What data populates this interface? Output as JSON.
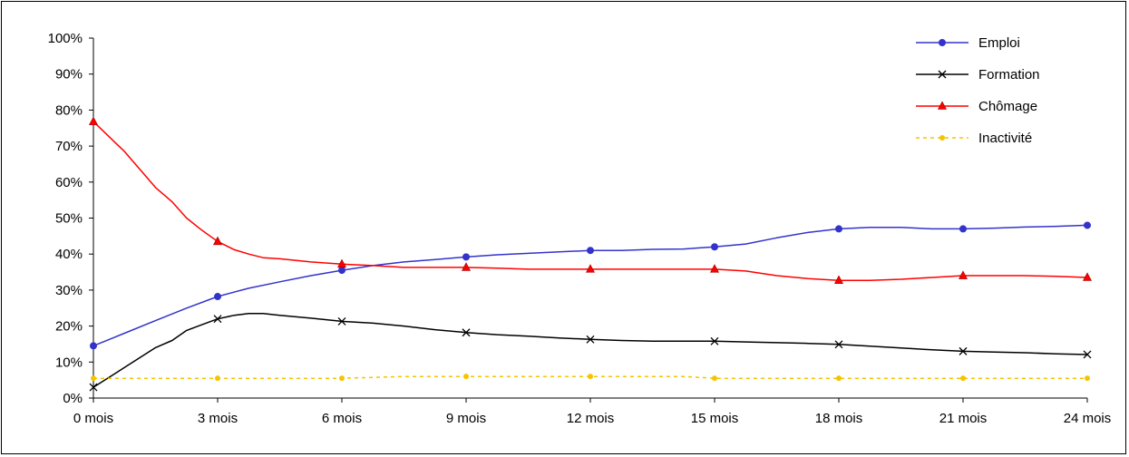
{
  "chart_data": {
    "type": "line",
    "title": "",
    "xlabel": "",
    "ylabel": "",
    "categories": [
      "0 mois",
      "3 mois",
      "6 mois",
      "9 mois",
      "12 mois",
      "15 mois",
      "18 mois",
      "21 mois",
      "24 mois"
    ],
    "months": [
      0,
      3,
      6,
      9,
      12,
      15,
      18,
      21,
      24
    ],
    "ylim": [
      0,
      100
    ],
    "yticks": [
      "0%",
      "10%",
      "20%",
      "30%",
      "40%",
      "50%",
      "60%",
      "70%",
      "80%",
      "90%",
      "100%"
    ],
    "grid": false,
    "legend": "top-right",
    "series": [
      {
        "name": "Emploi",
        "color": "#3333cc",
        "marker": "circle",
        "dash": "",
        "values": [
          14.5,
          28.2,
          35.5,
          39.2,
          41.0,
          42.0,
          47.0,
          47.0,
          48.0
        ],
        "path": [
          [
            0,
            14.5
          ],
          [
            0.75,
            18
          ],
          [
            1.5,
            21.5
          ],
          [
            2.25,
            25
          ],
          [
            3,
            28.2
          ],
          [
            3.75,
            30.5
          ],
          [
            4.5,
            32.3
          ],
          [
            5.25,
            34
          ],
          [
            6,
            35.5
          ],
          [
            6.75,
            36.8
          ],
          [
            7.5,
            37.8
          ],
          [
            8.25,
            38.5
          ],
          [
            9,
            39.2
          ],
          [
            9.75,
            39.8
          ],
          [
            10.5,
            40.2
          ],
          [
            11.25,
            40.6
          ],
          [
            12,
            41.0
          ],
          [
            12.75,
            41.0
          ],
          [
            13.5,
            41.3
          ],
          [
            14.25,
            41.4
          ],
          [
            15,
            42.0
          ],
          [
            15.75,
            42.8
          ],
          [
            16.5,
            44.5
          ],
          [
            17.25,
            46
          ],
          [
            18,
            47.0
          ],
          [
            18.75,
            47.4
          ],
          [
            19.5,
            47.4
          ],
          [
            20.25,
            47.0
          ],
          [
            21,
            47.0
          ],
          [
            21.75,
            47.2
          ],
          [
            22.5,
            47.5
          ],
          [
            23.25,
            47.7
          ],
          [
            24,
            48.0
          ]
        ]
      },
      {
        "name": "Formation",
        "color": "#000000",
        "marker": "x",
        "dash": "",
        "values": [
          3.0,
          22.0,
          21.3,
          18.2,
          16.3,
          15.8,
          14.9,
          13.0,
          12.1
        ],
        "path": [
          [
            0,
            3.0
          ],
          [
            0.75,
            8.5
          ],
          [
            1.5,
            14
          ],
          [
            1.9,
            16
          ],
          [
            2.25,
            18.8
          ],
          [
            2.6,
            20.3
          ],
          [
            3,
            22.0
          ],
          [
            3.4,
            23.0
          ],
          [
            3.75,
            23.5
          ],
          [
            4.1,
            23.5
          ],
          [
            4.5,
            23.0
          ],
          [
            5.25,
            22.2
          ],
          [
            6,
            21.3
          ],
          [
            6.75,
            20.8
          ],
          [
            7.5,
            20
          ],
          [
            8.25,
            19
          ],
          [
            9,
            18.2
          ],
          [
            9.75,
            17.6
          ],
          [
            10.5,
            17.2
          ],
          [
            11.25,
            16.7
          ],
          [
            12,
            16.3
          ],
          [
            12.75,
            16.0
          ],
          [
            13.5,
            15.8
          ],
          [
            14.25,
            15.8
          ],
          [
            15,
            15.8
          ],
          [
            15.75,
            15.6
          ],
          [
            16.5,
            15.4
          ],
          [
            17.25,
            15.2
          ],
          [
            18,
            14.9
          ],
          [
            18.75,
            14.4
          ],
          [
            19.5,
            13.9
          ],
          [
            20.25,
            13.4
          ],
          [
            21,
            13.0
          ],
          [
            21.75,
            12.8
          ],
          [
            22.5,
            12.6
          ],
          [
            23.25,
            12.3
          ],
          [
            24,
            12.1
          ]
        ]
      },
      {
        "name": "Chômage",
        "color": "#ff0000",
        "marker": "triangle",
        "dash": "",
        "values": [
          76.8,
          43.5,
          37.2,
          36.3,
          35.8,
          35.8,
          32.7,
          34.0,
          33.5
        ],
        "path": [
          [
            0,
            76.8
          ],
          [
            0.75,
            68.5
          ],
          [
            1.5,
            58.5
          ],
          [
            1.9,
            54.5
          ],
          [
            2.25,
            50
          ],
          [
            2.6,
            46.8
          ],
          [
            3,
            43.5
          ],
          [
            3.4,
            41.2
          ],
          [
            3.75,
            40
          ],
          [
            4.1,
            39
          ],
          [
            4.5,
            38.7
          ],
          [
            5.25,
            37.8
          ],
          [
            6,
            37.2
          ],
          [
            6.75,
            36.8
          ],
          [
            7.5,
            36.3
          ],
          [
            8.25,
            36.3
          ],
          [
            9,
            36.3
          ],
          [
            9.75,
            36.1
          ],
          [
            10.5,
            35.8
          ],
          [
            11.25,
            35.8
          ],
          [
            12,
            35.8
          ],
          [
            12.75,
            35.8
          ],
          [
            13.5,
            35.8
          ],
          [
            14.25,
            35.8
          ],
          [
            15,
            35.8
          ],
          [
            15.75,
            35.3
          ],
          [
            16.5,
            34.0
          ],
          [
            17.25,
            33.2
          ],
          [
            18,
            32.7
          ],
          [
            18.75,
            32.7
          ],
          [
            19.5,
            33.0
          ],
          [
            20.25,
            33.5
          ],
          [
            21,
            34.0
          ],
          [
            21.75,
            34.0
          ],
          [
            22.5,
            34.0
          ],
          [
            23.25,
            33.8
          ],
          [
            24,
            33.5
          ]
        ]
      },
      {
        "name": "Inactivité",
        "color": "#f5c400",
        "marker": "dot",
        "dash": "4,4",
        "values": [
          5.5,
          5.5,
          5.5,
          6.0,
          6.0,
          5.5,
          5.5,
          5.5,
          5.5
        ],
        "path": [
          [
            0,
            5.5
          ],
          [
            3,
            5.5
          ],
          [
            6,
            5.5
          ],
          [
            7.5,
            6.0
          ],
          [
            9,
            6.0
          ],
          [
            12,
            6.0
          ],
          [
            14.25,
            6.0
          ],
          [
            15,
            5.5
          ],
          [
            18,
            5.5
          ],
          [
            21,
            5.5
          ],
          [
            24,
            5.5
          ]
        ]
      }
    ]
  }
}
